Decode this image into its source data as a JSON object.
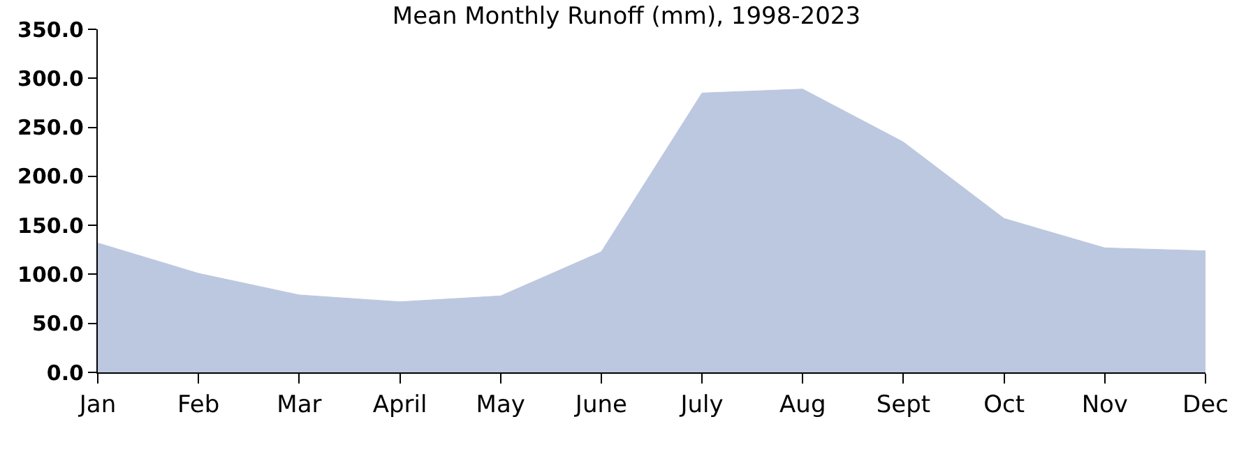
{
  "chart_data": {
    "type": "area",
    "title": "Mean Monthly Runoff (mm), 1998-2023",
    "categories": [
      "Jan",
      "Feb",
      "Mar",
      "April",
      "May",
      "June",
      "July",
      "Aug",
      "Sept",
      "Oct",
      "Nov",
      "Dec"
    ],
    "values": [
      132,
      101,
      79,
      72,
      78,
      123,
      285,
      289,
      235,
      157,
      127,
      124
    ],
    "color": "#bcc8e0",
    "ylim": [
      0,
      350
    ],
    "yticks": [
      {
        "value": 0,
        "label": "0.0"
      },
      {
        "value": 50,
        "label": "50.0"
      },
      {
        "value": 100,
        "label": "100.0"
      },
      {
        "value": 150,
        "label": "150.0"
      },
      {
        "value": 200,
        "label": "200.0"
      },
      {
        "value": 250,
        "label": "250.0"
      },
      {
        "value": 300,
        "label": "300.0"
      },
      {
        "value": 350,
        "label": "350.0"
      }
    ]
  }
}
